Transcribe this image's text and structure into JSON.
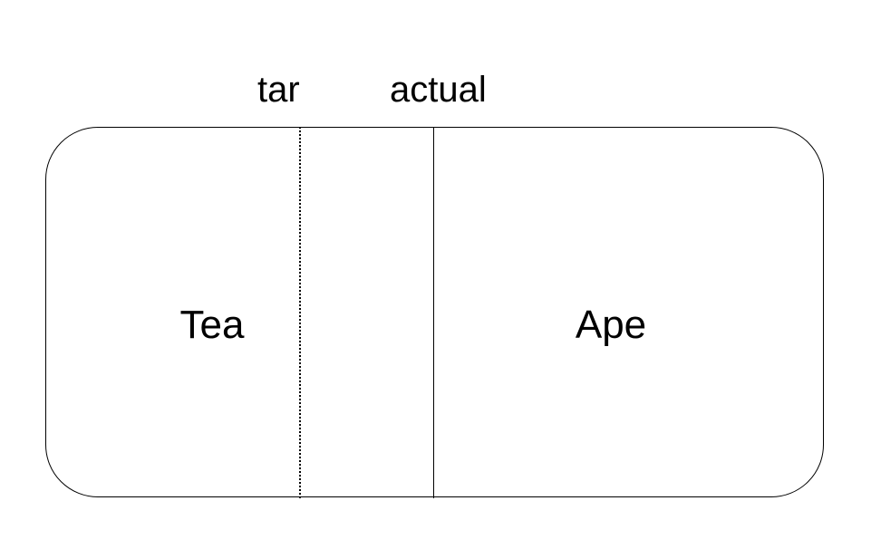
{
  "labels": {
    "target": "tar",
    "actual": "actual"
  },
  "regions": {
    "left": "Tea",
    "right": "Ape"
  }
}
